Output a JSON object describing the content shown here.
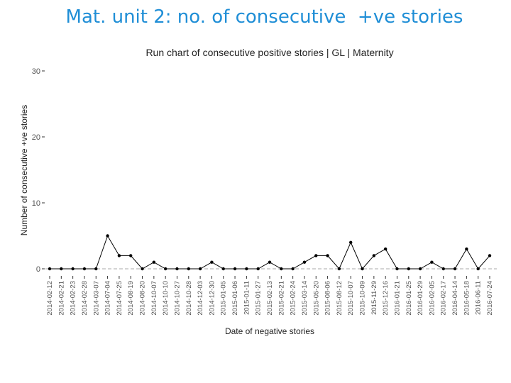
{
  "slide": {
    "title": "Mat. unit 2: no. of consecutive  +ve stories"
  },
  "chart_data": {
    "type": "line",
    "title": "Run chart of consecutive positive stories | GL | Maternity",
    "xlabel": "Date of negative stories",
    "ylabel": "Number of consecutive +ve stories",
    "ylim": [
      0,
      30
    ],
    "yticks": [
      0,
      10,
      20,
      30
    ],
    "median": 0,
    "grid": false,
    "legend": "none",
    "colors": {
      "line": "#000000",
      "median": "#aaaaaa",
      "axis": "#333333"
    },
    "x": [
      "2014-02-12",
      "2014-02-21",
      "2014-02-23",
      "2014-02-28",
      "2014-03-07",
      "2014-07-04",
      "2014-07-25",
      "2014-08-19",
      "2014-08-20",
      "2014-10-07",
      "2014-10-10",
      "2014-10-27",
      "2014-10-28",
      "2014-12-03",
      "2014-12-30",
      "2015-01-05",
      "2015-01-06",
      "2015-01-11",
      "2015-01-27",
      "2015-02-13",
      "2015-02-21",
      "2015-02-24",
      "2015-03-14",
      "2015-05-20",
      "2015-08-06",
      "2015-08-12",
      "2015-10-07",
      "2015-10-09",
      "2015-11-29",
      "2015-12-16",
      "2016-01-21",
      "2016-01-25",
      "2016-01-29",
      "2016-02-05",
      "2016-02-17",
      "2016-04-14",
      "2016-05-18",
      "2016-06-11",
      "2016-07-24"
    ],
    "y": [
      0,
      0,
      0,
      0,
      0,
      5,
      2,
      2,
      0,
      1,
      0,
      0,
      0,
      0,
      1,
      0,
      0,
      0,
      0,
      1,
      0,
      0,
      1,
      2,
      2,
      0,
      4,
      0,
      2,
      3,
      0,
      0,
      0,
      1,
      0,
      0,
      3,
      0,
      2
    ]
  }
}
